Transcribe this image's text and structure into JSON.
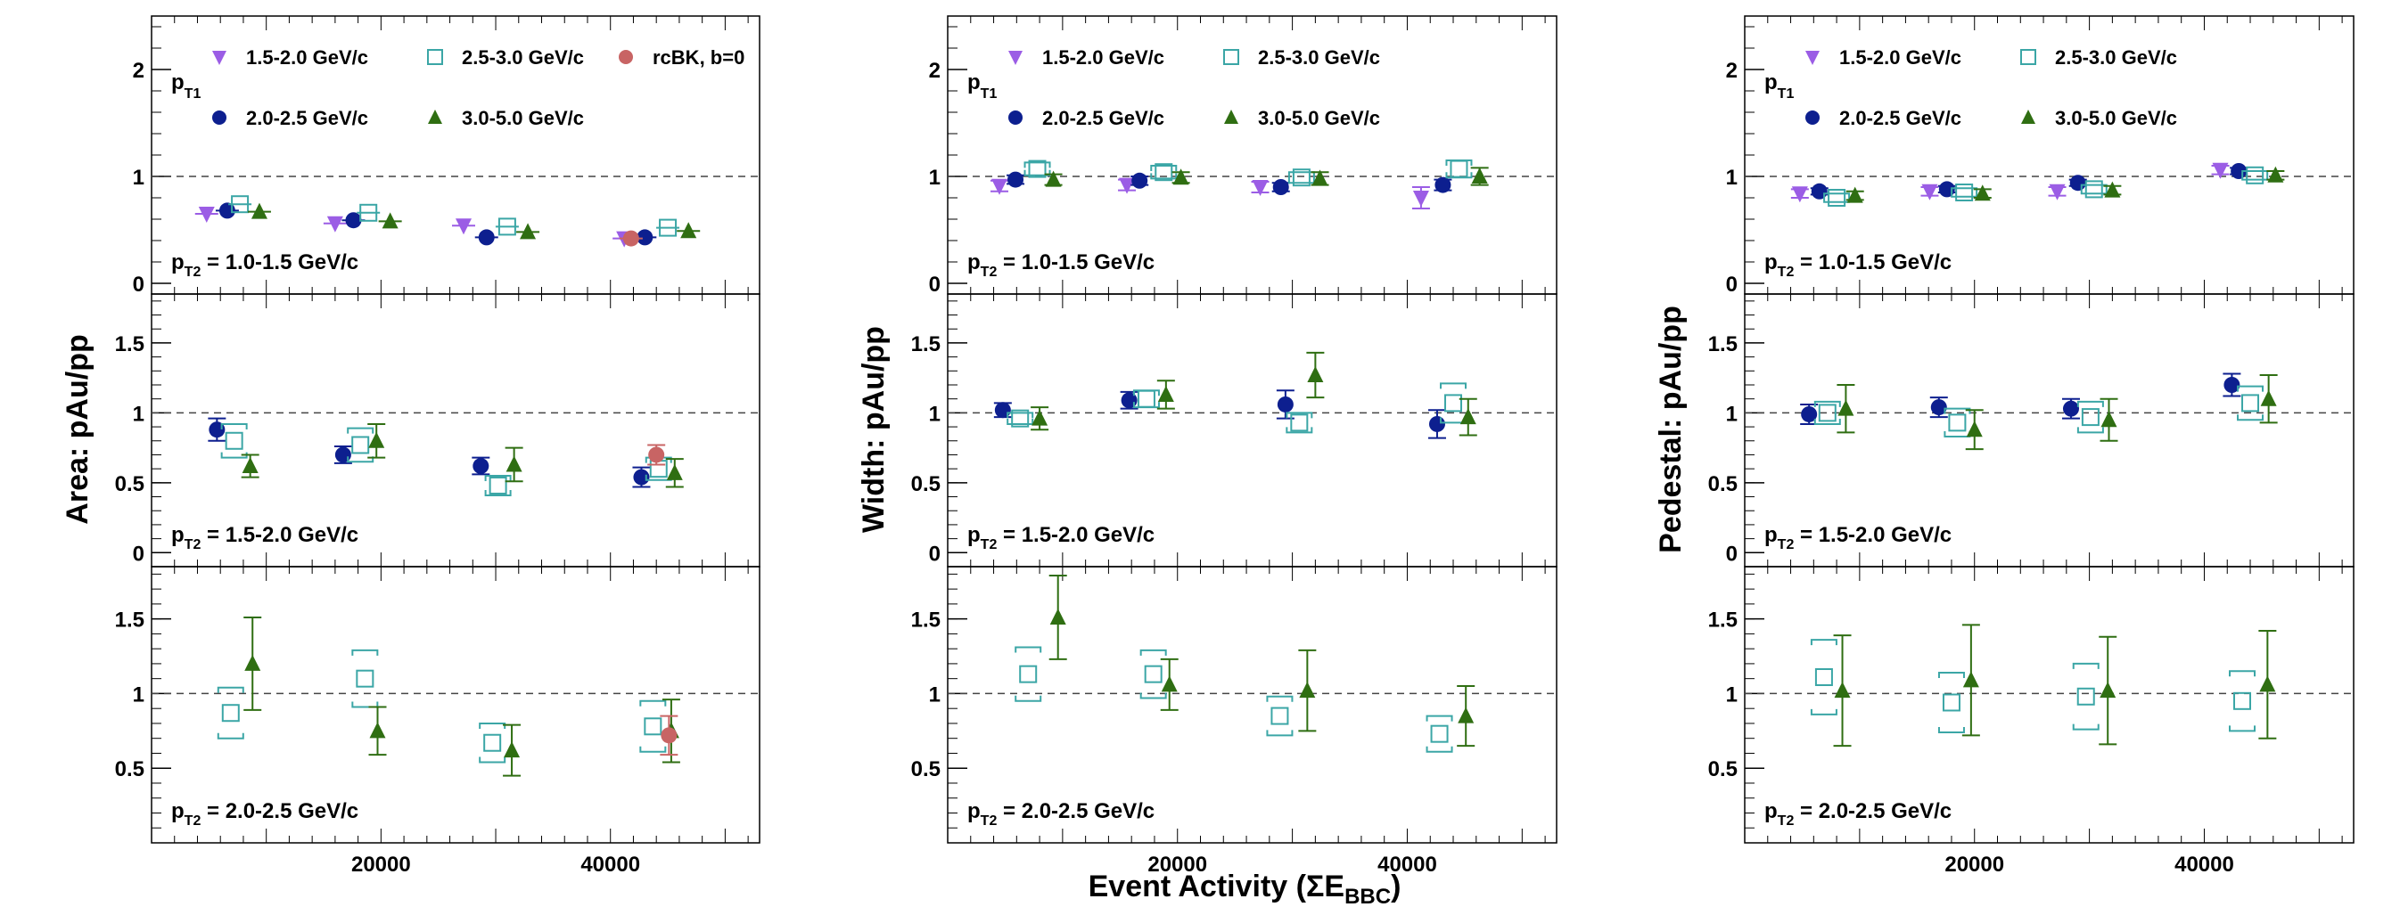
{
  "figure": {
    "xaxis_title": {
      "main": "Event Activity (ΣE",
      "sub": "BBC",
      "close": ")"
    },
    "x_ticks": [
      "20000",
      "40000"
    ],
    "x_tick_values": [
      20000,
      40000
    ],
    "pt1_label": {
      "main": "p",
      "sub": "T1"
    },
    "legend_entries": {
      "s15": "1.5-2.0 GeV/c",
      "s20": "2.0-2.5 GeV/c",
      "s25": "2.5-3.0 GeV/c",
      "s30": "3.0-5.0 GeV/c",
      "rcbk": "rcBK, b=0"
    },
    "colors": {
      "s15": "#9b5de5",
      "s20": "#0d1f8f",
      "s25": "#3ba6a6",
      "s30": "#2f6e12",
      "rcbk": "#c86464"
    }
  },
  "chart_data": [
    {
      "type": "scatter",
      "ylabel": "Area: pAu/pp",
      "xlim": [
        0,
        53000
      ],
      "rows": [
        {
          "pt2_label": {
            "main": "p",
            "sub": "T2",
            "value": " = 1.0-1.5 GeV/c"
          },
          "ylim": [
            -0.1,
            2.5
          ],
          "y_ticks": [
            0,
            1,
            2
          ],
          "y_tick_labels": [
            "0",
            "1",
            "2"
          ],
          "series": [
            {
              "key": "s15",
              "name": "1.5-2.0 GeV/c",
              "marker": "tri-down",
              "x": [
                4800,
                16000,
                27200,
                41200
              ],
              "y": [
                0.65,
                0.56,
                0.54,
                0.42
              ]
            },
            {
              "key": "s20",
              "name": "2.0-2.5 GeV/c",
              "marker": "circle",
              "x": [
                6600,
                17600,
                29200,
                43000
              ],
              "y": [
                0.68,
                0.59,
                0.43,
                0.43
              ]
            },
            {
              "key": "s25",
              "name": "2.5-3.0 GeV/c",
              "marker": "open-square",
              "x": [
                7700,
                18900,
                31000,
                45000
              ],
              "y": [
                0.74,
                0.66,
                0.53,
                0.52
              ]
            },
            {
              "key": "s30",
              "name": "3.0-5.0 GeV/c",
              "marker": "tri-up",
              "x": [
                9400,
                20800,
                32800,
                46800
              ],
              "y": [
                0.67,
                0.58,
                0.48,
                0.49
              ]
            },
            {
              "key": "rcbk",
              "name": "rcBK, b=0",
              "marker": "circle",
              "x": [
                41800
              ],
              "y": [
                0.42
              ]
            }
          ]
        },
        {
          "pt2_label": {
            "main": "p",
            "sub": "T2",
            "value": " = 1.5-2.0 GeV/c"
          },
          "ylim": [
            -0.1,
            1.85
          ],
          "y_ticks": [
            0,
            0.5,
            1,
            1.5
          ],
          "y_tick_labels": [
            "0",
            "0.5",
            "1",
            "1.5"
          ],
          "series": [
            {
              "key": "s20",
              "name": "2.0-2.5 GeV/c",
              "marker": "circle",
              "x": [
                5700,
                16700,
                28700,
                42700
              ],
              "y": [
                0.88,
                0.7,
                0.62,
                0.54
              ],
              "err": [
                0.08,
                0.06,
                0.06,
                0.07
              ]
            },
            {
              "key": "s25",
              "name": "2.5-3.0 GeV/c",
              "marker": "open-square",
              "x": [
                7200,
                18200,
                30200,
                44200
              ],
              "y": [
                0.8,
                0.77,
                0.48,
                0.6
              ],
              "err": [
                0.12,
                0.12,
                0.07,
                0.08
              ]
            },
            {
              "key": "s30",
              "name": "3.0-5.0 GeV/c",
              "marker": "tri-up",
              "x": [
                8600,
                19600,
                31600,
                45600
              ],
              "y": [
                0.62,
                0.8,
                0.63,
                0.57
              ],
              "err": [
                0.08,
                0.12,
                0.12,
                0.1
              ]
            },
            {
              "key": "rcbk",
              "name": "rcBK, b=0",
              "marker": "circle",
              "x": [
                44000
              ],
              "y": [
                0.7
              ],
              "err": [
                0.07
              ]
            }
          ]
        },
        {
          "pt2_label": {
            "main": "p",
            "sub": "T2",
            "value": " = 2.0-2.5 GeV/c"
          },
          "ylim": [
            0,
            1.85
          ],
          "y_ticks": [
            0.5,
            1,
            1.5
          ],
          "y_tick_labels": [
            "0.5",
            "1",
            "1.5"
          ],
          "series": [
            {
              "key": "s25",
              "name": "2.5-3.0 GeV/c",
              "marker": "open-square",
              "x": [
                6900,
                18600,
                29700,
                43700
              ],
              "y": [
                0.87,
                1.1,
                0.67,
                0.78
              ],
              "err": [
                0.17,
                0.19,
                0.13,
                0.17
              ]
            },
            {
              "key": "s30",
              "name": "3.0-5.0 GeV/c",
              "marker": "tri-up",
              "x": [
                8800,
                19700,
                31400,
                45300
              ],
              "y": [
                1.2,
                0.75,
                0.62,
                0.75
              ],
              "err": [
                0.31,
                0.16,
                0.17,
                0.21
              ]
            },
            {
              "key": "rcbk",
              "name": "rcBK, b=0",
              "marker": "circle",
              "x": [
                45100
              ],
              "y": [
                0.72
              ],
              "err": [
                0.13
              ]
            }
          ]
        }
      ]
    },
    {
      "type": "scatter",
      "ylabel": "Width: pAu/pp",
      "xlim": [
        0,
        53000
      ],
      "rows": [
        {
          "pt2_label": {
            "main": "p",
            "sub": "T2",
            "value": " = 1.0-1.5 GeV/c"
          },
          "ylim": [
            -0.1,
            2.5
          ],
          "y_ticks": [
            0,
            1,
            2
          ],
          "y_tick_labels": [
            "0",
            "1",
            "2"
          ],
          "series": [
            {
              "key": "s15",
              "name": "1.5-2.0 GeV/c",
              "marker": "tri-down",
              "x": [
                4500,
                15600,
                27200,
                41200
              ],
              "y": [
                0.91,
                0.92,
                0.9,
                0.8
              ],
              "err": [
                0.05,
                0.05,
                0.05,
                0.1
              ]
            },
            {
              "key": "s20",
              "name": "2.0-2.5 GeV/c",
              "marker": "circle",
              "x": [
                5900,
                16700,
                29000,
                43100
              ],
              "y": [
                0.97,
                0.96,
                0.9,
                0.92
              ],
              "err": [
                0.04,
                0.04,
                0.04,
                0.05
              ]
            },
            {
              "key": "s25",
              "name": "2.5-3.0 GeV/c",
              "marker": "open-square",
              "x": [
                7800,
                18800,
                30800,
                44500
              ],
              "y": [
                1.07,
                1.04,
                0.99,
                1.07
              ],
              "err": [
                0.06,
                0.06,
                0.05,
                0.08
              ]
            },
            {
              "key": "s30",
              "name": "3.0-5.0 GeV/c",
              "marker": "tri-up",
              "x": [
                9200,
                20300,
                32400,
                46300
              ],
              "y": [
                0.97,
                0.99,
                0.98,
                1.0
              ],
              "err": [
                0.05,
                0.05,
                0.06,
                0.08
              ]
            }
          ]
        },
        {
          "pt2_label": {
            "main": "p",
            "sub": "T2",
            "value": " = 1.5-2.0 GeV/c"
          },
          "ylim": [
            -0.1,
            1.85
          ],
          "y_ticks": [
            0,
            0.5,
            1,
            1.5
          ],
          "y_tick_labels": [
            "0",
            "0.5",
            "1",
            "1.5"
          ],
          "series": [
            {
              "key": "s20",
              "name": "2.0-2.5 GeV/c",
              "marker": "circle",
              "x": [
                4800,
                15800,
                29400,
                42600
              ],
              "y": [
                1.02,
                1.09,
                1.06,
                0.92
              ],
              "err": [
                0.05,
                0.06,
                0.1,
                0.1
              ]
            },
            {
              "key": "s25",
              "name": "2.5-3.0 GeV/c",
              "marker": "open-square",
              "x": [
                6300,
                17300,
                30600,
                44000
              ],
              "y": [
                0.96,
                1.1,
                0.93,
                1.07
              ],
              "err": [
                0.04,
                0.06,
                0.07,
                0.14
              ]
            },
            {
              "key": "s30",
              "name": "3.0-5.0 GeV/c",
              "marker": "tri-up",
              "x": [
                8000,
                19000,
                32000,
                45300
              ],
              "y": [
                0.96,
                1.13,
                1.27,
                0.97
              ],
              "err": [
                0.08,
                0.1,
                0.16,
                0.13
              ]
            }
          ]
        },
        {
          "pt2_label": {
            "main": "p",
            "sub": "T2",
            "value": " = 2.0-2.5 GeV/c"
          },
          "ylim": [
            0,
            1.85
          ],
          "y_ticks": [
            0.5,
            1,
            1.5
          ],
          "y_tick_labels": [
            "0.5",
            "1",
            "1.5"
          ],
          "series": [
            {
              "key": "s25",
              "name": "2.5-3.0 GeV/c",
              "marker": "open-square",
              "x": [
                7000,
                17900,
                28900,
                42800
              ],
              "y": [
                1.13,
                1.13,
                0.85,
                0.73
              ],
              "err": [
                0.18,
                0.16,
                0.13,
                0.12
              ]
            },
            {
              "key": "s30",
              "name": "3.0-5.0 GeV/c",
              "marker": "tri-up",
              "x": [
                9600,
                19300,
                31300,
                45100
              ],
              "y": [
                1.51,
                1.06,
                1.02,
                0.85
              ],
              "err": [
                0.28,
                0.17,
                0.27,
                0.2
              ]
            }
          ]
        }
      ]
    },
    {
      "type": "scatter",
      "ylabel": "Pedestal: pAu/pp",
      "xlim": [
        0,
        53000
      ],
      "rows": [
        {
          "pt2_label": {
            "main": "p",
            "sub": "T2",
            "value": " = 1.0-1.5 GeV/c"
          },
          "ylim": [
            -0.1,
            2.5
          ],
          "y_ticks": [
            0,
            1,
            2
          ],
          "y_tick_labels": [
            "0",
            "1",
            "2"
          ],
          "series": [
            {
              "key": "s15",
              "name": "1.5-2.0 GeV/c",
              "marker": "tri-down",
              "x": [
                4800,
                16100,
                27200,
                41400
              ],
              "y": [
                0.84,
                0.86,
                0.86,
                1.06
              ],
              "err": [
                0.04,
                0.04,
                0.04,
                0.04
              ]
            },
            {
              "key": "s20",
              "name": "2.0-2.5 GeV/c",
              "marker": "circle",
              "x": [
                6500,
                17600,
                29000,
                43000
              ],
              "y": [
                0.86,
                0.88,
                0.94,
                1.05
              ],
              "err": [
                0.03,
                0.03,
                0.03,
                0.03
              ]
            },
            {
              "key": "s25",
              "name": "2.5-3.0 GeV/c",
              "marker": "open-square",
              "x": [
                8000,
                19100,
                30400,
                44400
              ],
              "y": [
                0.8,
                0.85,
                0.88,
                1.01
              ],
              "err": [
                0.04,
                0.04,
                0.04,
                0.04
              ]
            },
            {
              "key": "s30",
              "name": "3.0-5.0 GeV/c",
              "marker": "tri-up",
              "x": [
                9600,
                20700,
                32000,
                46200
              ],
              "y": [
                0.82,
                0.84,
                0.87,
                1.01
              ],
              "err": [
                0.04,
                0.04,
                0.04,
                0.04
              ]
            }
          ]
        },
        {
          "pt2_label": {
            "main": "p",
            "sub": "T2",
            "value": " = 1.5-2.0 GeV/c"
          },
          "ylim": [
            -0.1,
            1.85
          ],
          "y_ticks": [
            0,
            0.5,
            1,
            1.5
          ],
          "y_tick_labels": [
            "0",
            "0.5",
            "1",
            "1.5"
          ],
          "series": [
            {
              "key": "s20",
              "name": "2.0-2.5 GeV/c",
              "marker": "circle",
              "x": [
                5600,
                16900,
                28400,
                42400
              ],
              "y": [
                0.99,
                1.04,
                1.03,
                1.2
              ],
              "err": [
                0.07,
                0.07,
                0.07,
                0.08
              ]
            },
            {
              "key": "s25",
              "name": "2.5-3.0 GeV/c",
              "marker": "open-square",
              "x": [
                7200,
                18500,
                30100,
                44000
              ],
              "y": [
                1.0,
                0.93,
                0.97,
                1.07
              ],
              "err": [
                0.08,
                0.1,
                0.11,
                0.12
              ]
            },
            {
              "key": "s30",
              "name": "3.0-5.0 GeV/c",
              "marker": "tri-up",
              "x": [
                8800,
                20000,
                31700,
                45600
              ],
              "y": [
                1.03,
                0.88,
                0.95,
                1.1
              ],
              "err": [
                0.17,
                0.14,
                0.15,
                0.17
              ]
            }
          ]
        },
        {
          "pt2_label": {
            "main": "p",
            "sub": "T2",
            "value": " = 2.0-2.5 GeV/c"
          },
          "ylim": [
            0,
            1.85
          ],
          "y_ticks": [
            0.5,
            1,
            1.5
          ],
          "y_tick_labels": [
            "0.5",
            "1",
            "1.5"
          ],
          "series": [
            {
              "key": "s25",
              "name": "2.5-3.0 GeV/c",
              "marker": "open-square",
              "x": [
                6900,
                18000,
                29700,
                43300
              ],
              "y": [
                1.11,
                0.94,
                0.98,
                0.95
              ],
              "err": [
                0.25,
                0.2,
                0.22,
                0.2
              ]
            },
            {
              "key": "s30",
              "name": "3.0-5.0 GeV/c",
              "marker": "tri-up",
              "x": [
                8500,
                19700,
                31600,
                45500
              ],
              "y": [
                1.02,
                1.09,
                1.02,
                1.06
              ],
              "err": [
                0.37,
                0.37,
                0.36,
                0.36
              ]
            }
          ]
        }
      ]
    }
  ]
}
